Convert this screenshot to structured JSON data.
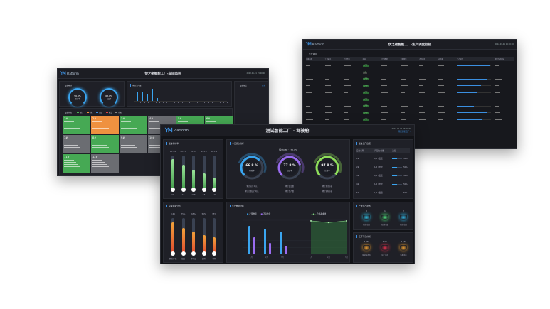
{
  "workshop": {
    "logo": "Platform",
    "title": "伊之密智能工厂-车间监控",
    "date": "2022-01-01 15:00:00",
    "oee_panel": "设备稼动",
    "gauges": [
      {
        "value": "56.0%",
        "label": "稼动率"
      },
      {
        "value": "63.0%",
        "label": "良品率"
      }
    ],
    "output_panel": "当日生产量",
    "output_values": [
      9200,
      9400,
      6500,
      12300,
      3000
    ],
    "alarm_panel": "设备报警",
    "alarm_link": "更多",
    "status_panel": "设备状态",
    "legend": [
      "运行",
      "待机",
      "调试",
      "报警",
      "停机"
    ],
    "tiles": [
      {
        "name": "1#",
        "status": "run"
      },
      {
        "name": "2#",
        "status": "warn"
      },
      {
        "name": "3#",
        "status": "run"
      },
      {
        "name": "4#",
        "status": "stop"
      },
      {
        "name": "5#",
        "status": "run"
      },
      {
        "name": "6#",
        "status": "run"
      },
      {
        "name": "7#",
        "status": "stop"
      },
      {
        "name": "8#",
        "status": "run"
      },
      {
        "name": "9#",
        "status": "stop"
      },
      {
        "name": "10#",
        "status": "stop"
      },
      {
        "name": "11#",
        "status": "run"
      },
      {
        "name": "12#",
        "status": "stop"
      }
    ]
  },
  "schedule": {
    "logo": "Platform",
    "title": "伊之密智能工厂-生产调度监控",
    "date": "2022-01-01 15:00:00",
    "panel": "生产调度",
    "columns": [
      "设备名称",
      "工单编号",
      "产品型号",
      "状态",
      "计划数量",
      "实际数量",
      "不良数量",
      "达成率",
      "生产进度",
      "预计完成时间"
    ],
    "rows": [
      {
        "status": "生产中",
        "progress": 0.95
      },
      {
        "status": "待机",
        "progress": 0.85
      },
      {
        "status": "生产中",
        "progress": 0.9
      },
      {
        "status": "生产中",
        "progress": 0.7
      },
      {
        "status": "生产中",
        "progress": 0.6
      },
      {
        "status": "生产中",
        "progress": 0.8
      },
      {
        "status": "生产中",
        "progress": 0.5
      },
      {
        "status": "生产中",
        "progress": 0.9
      },
      {
        "status": "生产中",
        "progress": 0.75
      }
    ]
  },
  "cockpit": {
    "logo": "Platform",
    "title": "测试智能工厂 - 驾驶舱",
    "date": "2022-01-01 15:00:00",
    "site": "测试智能工厂",
    "bars_panel": "设备稼动率",
    "bars": [
      {
        "label": "3#",
        "value": "93.3%",
        "fill": 0.9
      },
      {
        "label": "2#",
        "value": "98.5%",
        "fill": 0.74
      },
      {
        "label": "10#",
        "value": "95.4%",
        "fill": 0.6
      },
      {
        "label": "7#",
        "value": "93.5%",
        "fill": 0.48
      },
      {
        "label": "1#",
        "value": "92.1%",
        "fill": 0.36
      }
    ],
    "core_panel": "今日核心指标",
    "oee": "综合OEE： 72.1%",
    "gauges": [
      {
        "value": "66.8 %",
        "label": "稼动率",
        "line1": "累计运行 时长",
        "line2": "累计计划运行时长",
        "pct": 0.668,
        "color": "#3aa5f0"
      },
      {
        "value": "77.8 %",
        "label": "良品率",
        "line1": "累计良品数",
        "line2": "累计生产数",
        "pct": 0.778,
        "color": "#9a6cf0"
      },
      {
        "value": "97.8 %",
        "label": "性能率",
        "line1": "累计理论节拍",
        "line2": "累计实际节拍",
        "pct": 0.978,
        "color": "#8fe05a"
      }
    ],
    "device_panel": "设备生产数据",
    "device_columns": [
      "设备名称",
      "产品数/总数",
      "进度"
    ],
    "devices": [
      {
        "name": "1#",
        "count": "1/2 / 套套",
        "pct": "50%",
        "fill": 0.5
      },
      {
        "name": "2#",
        "count": "1/2 / 套套",
        "pct": "50%",
        "fill": 0.5
      },
      {
        "name": "3#",
        "count": "1/2 / 套套",
        "pct": "50%",
        "fill": 0.5
      },
      {
        "name": "4#",
        "count": "1/2 / 套套",
        "pct": "50%",
        "fill": 0.5
      },
      {
        "name": "5#",
        "count": "1/2 / 套套",
        "pct": "50%",
        "fill": 0.5
      }
    ],
    "loss_panel": "设备损失分析",
    "loss_bars": [
      {
        "label": "换模/产线",
        "value": "0.66",
        "fill": 0.88
      },
      {
        "label": "故障",
        "value": "75%",
        "fill": 0.72
      },
      {
        "label": "等待品",
        "value": "65%",
        "fill": 0.63
      },
      {
        "label": "缺料",
        "value": "56%",
        "fill": 0.53
      },
      {
        "label": "待机",
        "value": "35%",
        "fill": 0.47
      }
    ],
    "output_panel": "生产数据分析",
    "chart_legend": [
      "产量数量",
      "不良数量",
      "合格率曲线"
    ],
    "chart_categories": [
      "1月",
      "2月",
      "3月"
    ],
    "produced": [
      1000,
      900,
      800
    ],
    "defects": [
      600,
      400,
      300
    ],
    "yield_rate": [
      98,
      93,
      98
    ],
    "status_panel": "产量生产状态",
    "status_items": [
      {
        "value": "3",
        "label": "在线/总数"
      },
      {
        "value": "1",
        "label": "在线/总数"
      },
      {
        "value": "2",
        "label": "在线/总数"
      }
    ],
    "alarm_panel": "工序不良分析",
    "alarm_items": [
      {
        "value": "1.2%",
        "label": "原材料不良"
      },
      {
        "value": "2.2%",
        "label": "加工不良"
      },
      {
        "value": "1.1%",
        "label": "装配不良"
      }
    ]
  }
}
